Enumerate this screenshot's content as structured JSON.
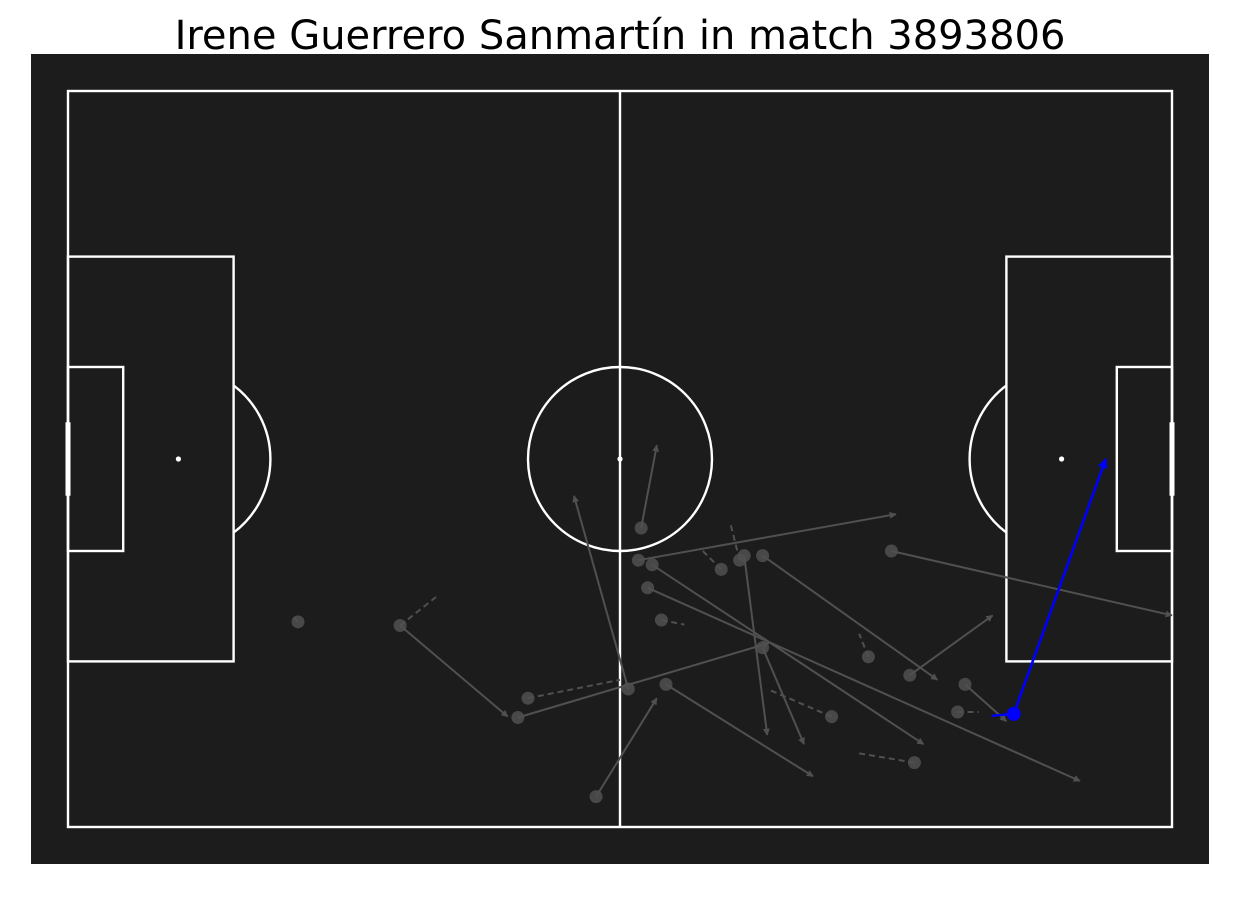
{
  "title": "Irene Guerrero Sanmartín in match 3893806",
  "colors": {
    "pitch_background": "#1c1c1c",
    "pitch_lines": "#ffffff",
    "other_actions": "#505050",
    "highlighted_action": "#0000ff",
    "figure_background": "#ffffff"
  },
  "chart_data": {
    "type": "scatter",
    "title": "Irene Guerrero Sanmartín in match 3893806",
    "pitch": {
      "length": 120,
      "width": 80,
      "units": "statsbomb_yards"
    },
    "grid": false,
    "legend": "none",
    "carries": [
      {
        "x": 25.0,
        "y": 57.7,
        "end_x": 24.5,
        "end_y": 57.1
      },
      {
        "x": 36.1,
        "y": 58.1,
        "end_x": 40.0,
        "end_y": 55.0
      },
      {
        "x": 50.0,
        "y": 66.0,
        "end_x": 60.0,
        "end_y": 64.0
      },
      {
        "x": 64.5,
        "y": 57.5,
        "end_x": 67.0,
        "end_y": 58.0
      },
      {
        "x": 73.0,
        "y": 51.0,
        "end_x": 72.0,
        "end_y": 47.0
      },
      {
        "x": 71.0,
        "y": 52.0,
        "end_x": 69.0,
        "end_y": 50.0
      },
      {
        "x": 83.0,
        "y": 68.0,
        "end_x": 76.0,
        "end_y": 65.0
      },
      {
        "x": 92.0,
        "y": 73.0,
        "end_x": 86.0,
        "end_y": 72.0
      },
      {
        "x": 87.0,
        "y": 61.5,
        "end_x": 86.0,
        "end_y": 59.0
      },
      {
        "x": 96.7,
        "y": 67.5,
        "end_x": 99.0,
        "end_y": 67.5
      }
    ],
    "passes": [
      {
        "x": 36.1,
        "y": 58.1,
        "end_x": 47.8,
        "end_y": 68.0
      },
      {
        "x": 48.9,
        "y": 68.1,
        "end_x": 76.2,
        "end_y": 60.0
      },
      {
        "x": 57.4,
        "y": 76.7,
        "end_x": 64.0,
        "end_y": 66.0
      },
      {
        "x": 60.9,
        "y": 65.0,
        "end_x": 55.0,
        "end_y": 44.0
      },
      {
        "x": 62.3,
        "y": 47.5,
        "end_x": 64.0,
        "end_y": 38.5
      },
      {
        "x": 62.0,
        "y": 51.0,
        "end_x": 90.0,
        "end_y": 46.0
      },
      {
        "x": 63.0,
        "y": 54.0,
        "end_x": 110.0,
        "end_y": 75.0
      },
      {
        "x": 63.5,
        "y": 51.5,
        "end_x": 93.0,
        "end_y": 71.0
      },
      {
        "x": 65.0,
        "y": 64.5,
        "end_x": 81.0,
        "end_y": 74.5
      },
      {
        "x": 73.5,
        "y": 50.5,
        "end_x": 76.0,
        "end_y": 70.0
      },
      {
        "x": 75.5,
        "y": 50.5,
        "end_x": 94.5,
        "end_y": 64.0
      },
      {
        "x": 75.5,
        "y": 60.5,
        "end_x": 80.0,
        "end_y": 71.0
      },
      {
        "x": 89.5,
        "y": 50.0,
        "end_x": 120.0,
        "end_y": 57.0
      },
      {
        "x": 91.5,
        "y": 63.5,
        "end_x": 100.5,
        "end_y": 57.0
      },
      {
        "x": 97.5,
        "y": 64.5,
        "end_x": 102.0,
        "end_y": 68.5
      }
    ],
    "highlighted_pass": {
      "x": 102.8,
      "y": 67.7,
      "end_x": 112.8,
      "end_y": 40.0
    }
  }
}
